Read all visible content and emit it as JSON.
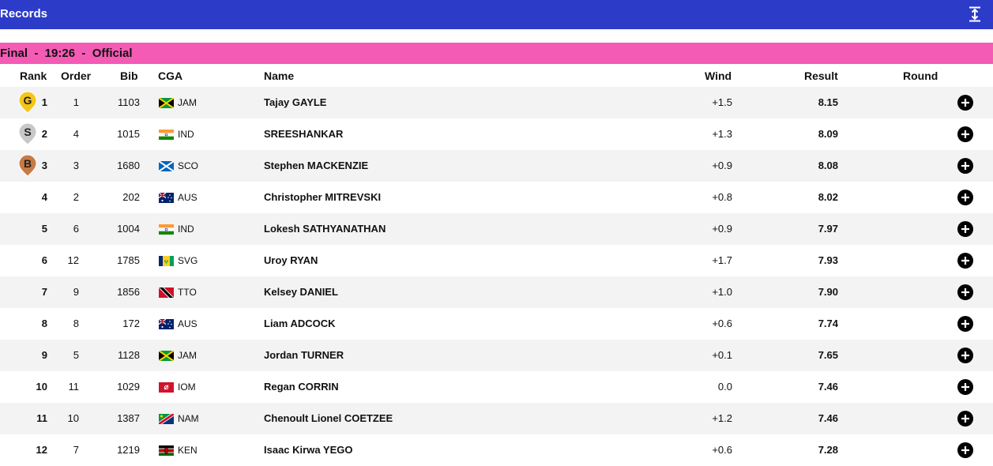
{
  "header": {
    "title": "Records"
  },
  "heat": {
    "label": "Final  -  19:26  -  Official"
  },
  "columns": {
    "rank": "Rank",
    "order": "Order",
    "bib": "Bib",
    "cga": "CGA",
    "name": "Name",
    "wind": "Wind",
    "result": "Result",
    "round": "Round"
  },
  "colors": {
    "topbar": "#2c3bc8",
    "heat_bar": "#f45bb5",
    "gold": "#f5c518",
    "silver": "#c8c8c8",
    "bronze": "#c87a45"
  },
  "rows": [
    {
      "rank": "1",
      "medal": "G",
      "order": "1",
      "bib": "1103",
      "cga": "JAM",
      "name": "Tajay GAYLE",
      "wind": "+1.5",
      "result": "8.15"
    },
    {
      "rank": "2",
      "medal": "S",
      "order": "4",
      "bib": "1015",
      "cga": "IND",
      "name": "SREESHANKAR",
      "wind": "+1.3",
      "result": "8.09"
    },
    {
      "rank": "3",
      "medal": "B",
      "order": "3",
      "bib": "1680",
      "cga": "SCO",
      "name": "Stephen MACKENZIE",
      "wind": "+0.9",
      "result": "8.08"
    },
    {
      "rank": "4",
      "medal": "",
      "order": "2",
      "bib": "202",
      "cga": "AUS",
      "name": "Christopher MITREVSKI",
      "wind": "+0.8",
      "result": "8.02"
    },
    {
      "rank": "5",
      "medal": "",
      "order": "6",
      "bib": "1004",
      "cga": "IND",
      "name": "Lokesh SATHYANATHAN",
      "wind": "+0.9",
      "result": "7.97"
    },
    {
      "rank": "6",
      "medal": "",
      "order": "12",
      "bib": "1785",
      "cga": "SVG",
      "name": "Uroy RYAN",
      "wind": "+1.7",
      "result": "7.93"
    },
    {
      "rank": "7",
      "medal": "",
      "order": "9",
      "bib": "1856",
      "cga": "TTO",
      "name": "Kelsey DANIEL",
      "wind": "+1.0",
      "result": "7.90"
    },
    {
      "rank": "8",
      "medal": "",
      "order": "8",
      "bib": "172",
      "cga": "AUS",
      "name": "Liam ADCOCK",
      "wind": "+0.6",
      "result": "7.74"
    },
    {
      "rank": "9",
      "medal": "",
      "order": "5",
      "bib": "1128",
      "cga": "JAM",
      "name": "Jordan TURNER",
      "wind": "+0.1",
      "result": "7.65"
    },
    {
      "rank": "10",
      "medal": "",
      "order": "11",
      "bib": "1029",
      "cga": "IOM",
      "name": "Regan CORRIN",
      "wind": "0.0",
      "result": "7.46"
    },
    {
      "rank": "11",
      "medal": "",
      "order": "10",
      "bib": "1387",
      "cga": "NAM",
      "name": "Chenoult Lionel COETZEE",
      "wind": "+1.2",
      "result": "7.46"
    },
    {
      "rank": "12",
      "medal": "",
      "order": "7",
      "bib": "1219",
      "cga": "KEN",
      "name": "Isaac Kirwa YEGO",
      "wind": "+0.6",
      "result": "7.28"
    }
  ]
}
